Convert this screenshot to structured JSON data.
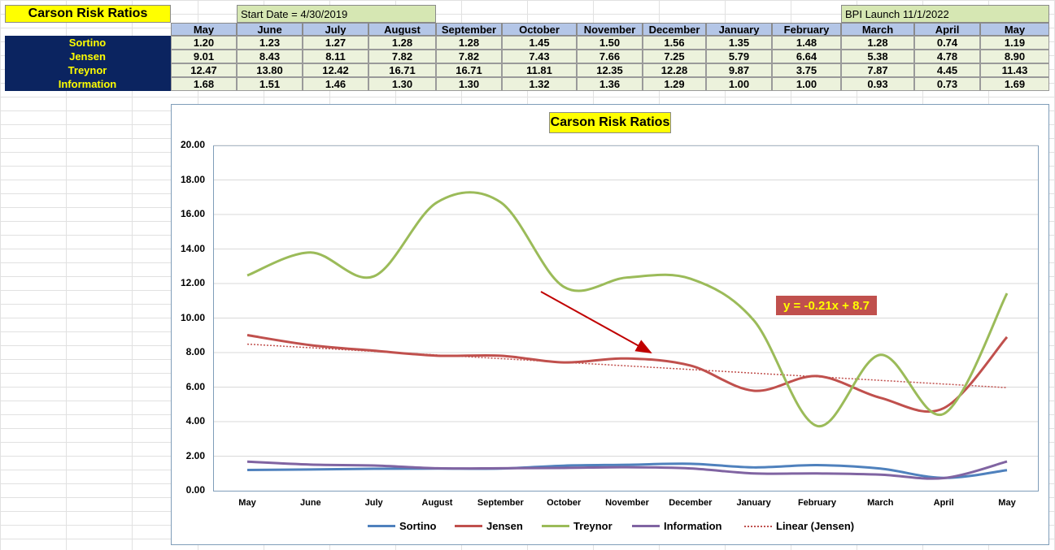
{
  "sheet": {
    "title": "Carson Risk Ratios",
    "start_date": "Start Date = 4/30/2019",
    "bpi_launch": "BPI Launch 11/1/2022"
  },
  "table": {
    "columns": [
      "May",
      "June",
      "July",
      "August",
      "September",
      "October",
      "November",
      "December",
      "January",
      "February",
      "March",
      "April",
      "May"
    ],
    "rows": [
      {
        "label": "Sortino",
        "values": [
          "1.20",
          "1.23",
          "1.27",
          "1.28",
          "1.28",
          "1.45",
          "1.50",
          "1.56",
          "1.35",
          "1.48",
          "1.28",
          "0.74",
          "1.19"
        ]
      },
      {
        "label": "Jensen",
        "values": [
          "9.01",
          "8.43",
          "8.11",
          "7.82",
          "7.82",
          "7.43",
          "7.66",
          "7.25",
          "5.79",
          "6.64",
          "5.38",
          "4.78",
          "8.90"
        ]
      },
      {
        "label": "Treynor",
        "values": [
          "12.47",
          "13.80",
          "12.42",
          "16.71",
          "16.71",
          "11.81",
          "12.35",
          "12.28",
          "9.87",
          "3.75",
          "7.87",
          "4.45",
          "11.43"
        ]
      },
      {
        "label": "Information",
        "values": [
          "1.68",
          "1.51",
          "1.46",
          "1.30",
          "1.30",
          "1.32",
          "1.36",
          "1.29",
          "1.00",
          "1.00",
          "0.93",
          "0.73",
          "1.69"
        ]
      }
    ]
  },
  "chart_data": {
    "type": "line",
    "title": "Carson Risk Ratios",
    "categories": [
      "May",
      "June",
      "July",
      "August",
      "September",
      "October",
      "November",
      "December",
      "January",
      "February",
      "March",
      "April",
      "May"
    ],
    "y_ticks": [
      "0.00",
      "2.00",
      "4.00",
      "6.00",
      "8.00",
      "10.00",
      "12.00",
      "14.00",
      "16.00",
      "18.00",
      "20.00"
    ],
    "ylim": [
      0,
      20
    ],
    "grid": true,
    "legend_position": "bottom",
    "series": [
      {
        "name": "Sortino",
        "color": "#4f81bd",
        "values": [
          1.2,
          1.23,
          1.27,
          1.28,
          1.28,
          1.45,
          1.5,
          1.56,
          1.35,
          1.48,
          1.28,
          0.74,
          1.19
        ]
      },
      {
        "name": "Jensen",
        "color": "#c0504d",
        "values": [
          9.01,
          8.43,
          8.11,
          7.82,
          7.82,
          7.43,
          7.66,
          7.25,
          5.79,
          6.64,
          5.38,
          4.78,
          8.9
        ]
      },
      {
        "name": "Treynor",
        "color": "#9bbb59",
        "values": [
          12.47,
          13.8,
          12.42,
          16.71,
          16.71,
          11.81,
          12.35,
          12.28,
          9.87,
          3.75,
          7.87,
          4.45,
          11.43
        ]
      },
      {
        "name": "Information",
        "color": "#8064a2",
        "values": [
          1.68,
          1.51,
          1.46,
          1.3,
          1.3,
          1.32,
          1.36,
          1.29,
          1.0,
          1.0,
          0.93,
          0.73,
          1.69
        ]
      }
    ],
    "trendline": {
      "name": "Linear (Jensen)",
      "color": "#c0504d",
      "equation": "y = -0.21x + 8.7",
      "slope": -0.21,
      "intercept": 8.7
    },
    "annotation_arrow_color": "#c00000"
  }
}
